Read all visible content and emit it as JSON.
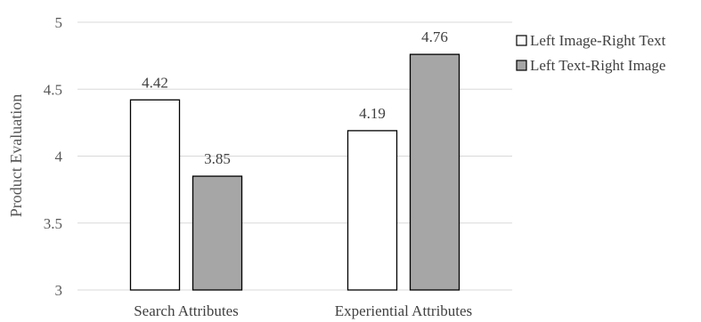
{
  "chart_data": {
    "type": "bar",
    "title": "",
    "xlabel": "",
    "ylabel": "Product Evaluation",
    "ylim": [
      3,
      5
    ],
    "yticks": [
      "3",
      "3.5",
      "4",
      "4.5",
      "5"
    ],
    "categories": [
      "Search Attributes",
      "Experiential Attributes"
    ],
    "series": [
      {
        "name": "Left Image-Right Text",
        "values": [
          4.42,
          4.19
        ],
        "labels": [
          "4.42",
          "4.19"
        ],
        "color": "#ffffff"
      },
      {
        "name": "Left Text-Right Image",
        "values": [
          3.85,
          4.76
        ],
        "labels": [
          "3.85",
          "4.76"
        ],
        "color": "#a6a6a6"
      }
    ],
    "grid": true,
    "legend_position": "right"
  }
}
